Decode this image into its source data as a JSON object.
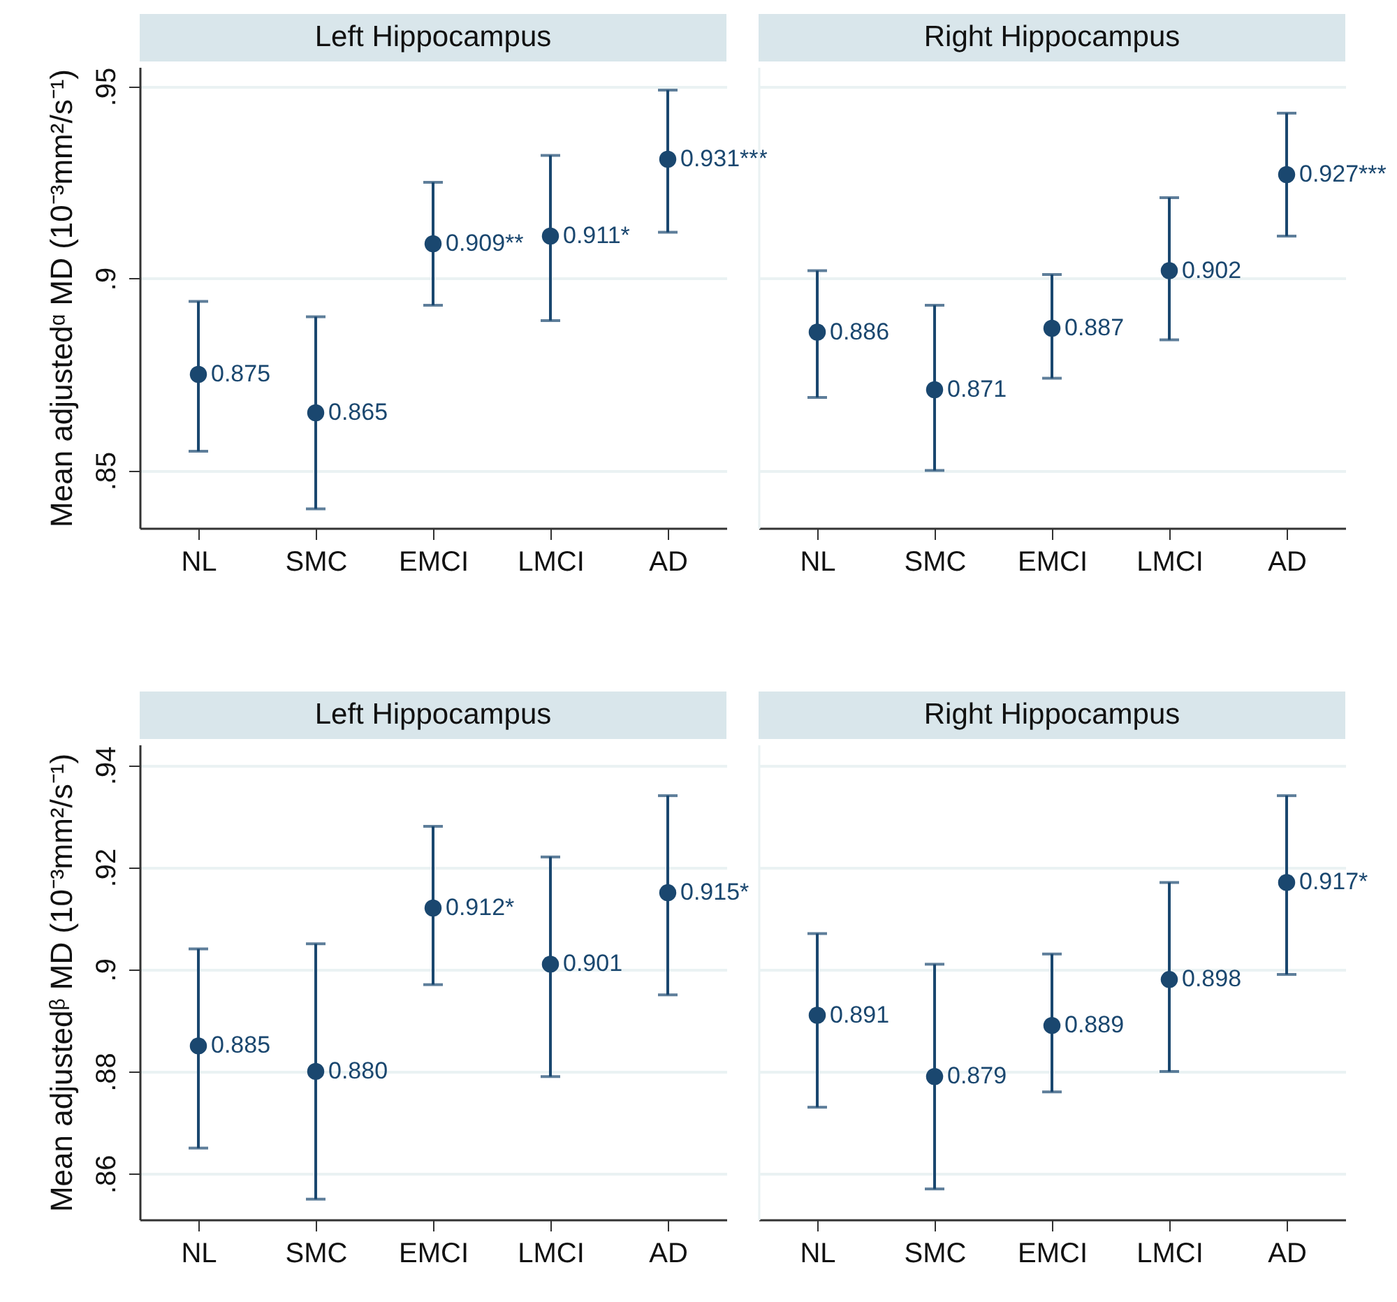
{
  "chart_data": [
    {
      "type": "scatter",
      "title": "Left Hippocampus",
      "ylabel": "Mean adjustedᵅ MD (10⁻³mm²/s⁻¹)",
      "categories": [
        "NL",
        "SMC",
        "EMCI",
        "LMCI",
        "AD"
      ],
      "grid": "y",
      "marker": "circle",
      "ylim": [
        0.835,
        0.955
      ],
      "yticks": [
        {
          "value": 0.85,
          "label": ".85"
        },
        {
          "value": 0.9,
          "label": ".9"
        },
        {
          "value": 0.95,
          "label": ".95"
        }
      ],
      "series": [
        {
          "color": "#1a476f",
          "values": [
            0.875,
            0.865,
            0.909,
            0.911,
            0.931
          ],
          "errors": [
            [
              0.855,
              0.894
            ],
            [
              0.84,
              0.89
            ],
            [
              0.893,
              0.925
            ],
            [
              0.889,
              0.932
            ],
            [
              0.912,
              0.949
            ]
          ],
          "value_labels": [
            "0.875",
            "0.865",
            "0.909**",
            "0.911*",
            "0.931***"
          ]
        }
      ]
    },
    {
      "type": "scatter",
      "title": "Right Hippocampus",
      "categories": [
        "NL",
        "SMC",
        "EMCI",
        "LMCI",
        "AD"
      ],
      "grid": "y",
      "marker": "circle",
      "tick_labels": "x",
      "ylim": [
        0.835,
        0.955
      ],
      "yticks": [
        0.85,
        0.9,
        0.95
      ],
      "series": [
        {
          "color": "#1a476f",
          "values": [
            0.886,
            0.871,
            0.887,
            0.902,
            0.927
          ],
          "errors": [
            [
              0.869,
              0.902
            ],
            [
              0.85,
              0.893
            ],
            [
              0.874,
              0.901
            ],
            [
              0.884,
              0.921
            ],
            [
              0.911,
              0.943
            ]
          ],
          "value_labels": [
            "0.886",
            "0.871",
            "0.887",
            "0.902",
            "0.927***"
          ]
        }
      ]
    },
    {
      "type": "scatter",
      "title": "Left Hippocampus",
      "ylabel": "Mean adjustedᵝ MD (10⁻³mm²/s⁻¹)",
      "categories": [
        "NL",
        "SMC",
        "EMCI",
        "LMCI",
        "AD"
      ],
      "grid": "y",
      "marker": "circle",
      "ylim": [
        0.851,
        0.944
      ],
      "yticks": [
        {
          "value": 0.86,
          "label": ".86"
        },
        {
          "value": 0.88,
          "label": ".88"
        },
        {
          "value": 0.9,
          "label": ".9"
        },
        {
          "value": 0.92,
          "label": ".92"
        },
        {
          "value": 0.94,
          "label": ".94"
        }
      ],
      "series": [
        {
          "color": "#1a476f",
          "values": [
            0.885,
            0.88,
            0.912,
            0.901,
            0.915
          ],
          "errors": [
            [
              0.865,
              0.904
            ],
            [
              0.855,
              0.905
            ],
            [
              0.897,
              0.928
            ],
            [
              0.879,
              0.922
            ],
            [
              0.895,
              0.934
            ]
          ],
          "value_labels": [
            "0.885",
            "0.880",
            "0.912*",
            "0.901",
            "0.915*"
          ]
        }
      ]
    },
    {
      "type": "scatter",
      "title": "Right Hippocampus",
      "categories": [
        "NL",
        "SMC",
        "EMCI",
        "LMCI",
        "AD"
      ],
      "grid": "y",
      "marker": "circle",
      "tick_labels": "x",
      "ylim": [
        0.851,
        0.944
      ],
      "yticks": [
        0.86,
        0.88,
        0.9,
        0.92,
        0.94
      ],
      "series": [
        {
          "color": "#1a476f",
          "values": [
            0.891,
            0.879,
            0.889,
            0.898,
            0.917
          ],
          "errors": [
            [
              0.873,
              0.907
            ],
            [
              0.857,
              0.901
            ],
            [
              0.876,
              0.903
            ],
            [
              0.88,
              0.917
            ],
            [
              0.899,
              0.934
            ]
          ],
          "value_labels": [
            "0.891",
            "0.879",
            "0.889",
            "0.898",
            "0.917*"
          ]
        }
      ]
    }
  ]
}
